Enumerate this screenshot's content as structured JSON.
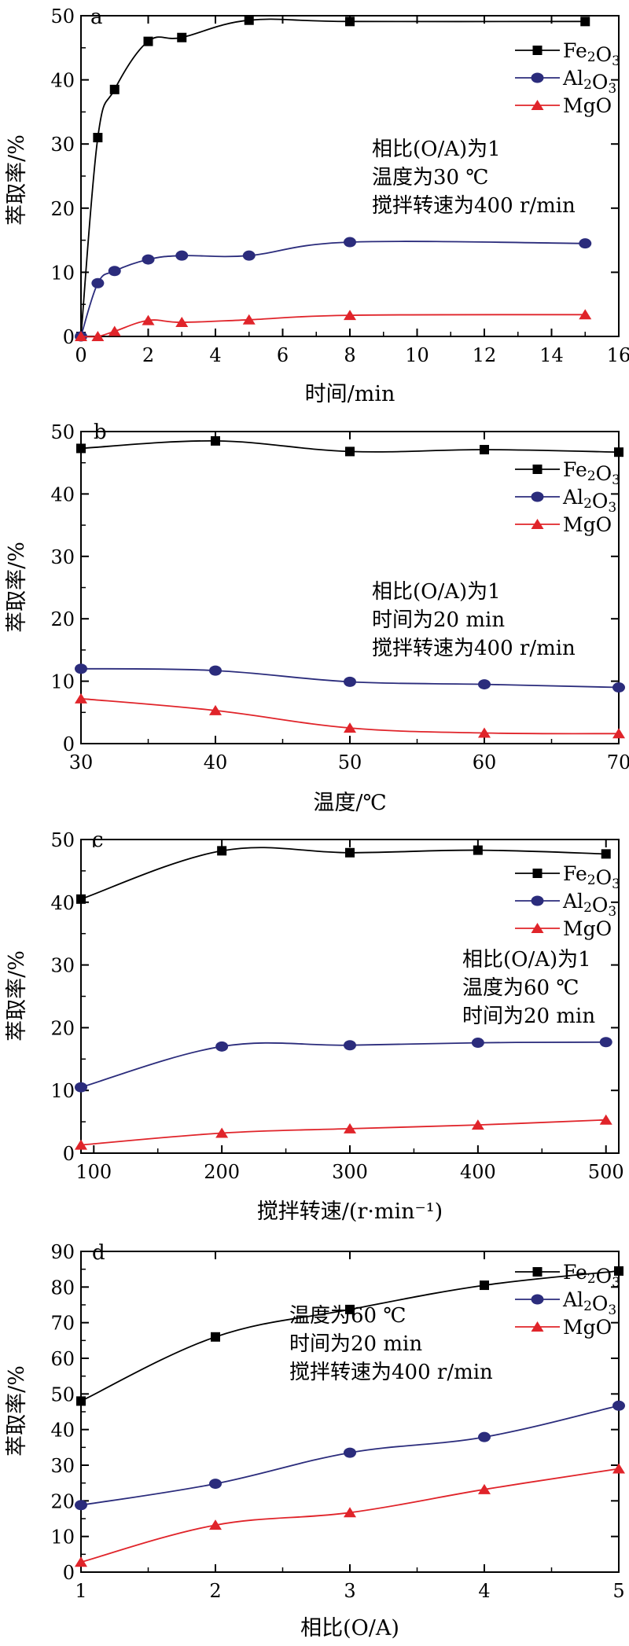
{
  "colors": {
    "Fe2O3": "#000000",
    "Al2O3": "#2b2c7c",
    "MgO": "#e0242a"
  },
  "chart_data": [
    {
      "type": "line",
      "panel_label": "a",
      "xlabel": "时间/min",
      "ylabel": "萃取率/%",
      "xlim": [
        0,
        16
      ],
      "ylim": [
        0,
        50
      ],
      "xticks": [
        0,
        2,
        4,
        6,
        8,
        10,
        12,
        14,
        16
      ],
      "yticks": [
        0,
        10,
        20,
        30,
        40,
        50
      ],
      "legend_position": "top-right",
      "annotations": [
        "相比(O/A)为1",
        "温度为30 ℃",
        "搅拌转速为400 r/min"
      ],
      "series": [
        {
          "name": "Fe2O3",
          "marker": "square",
          "x": [
            0,
            0.5,
            1,
            2,
            3,
            5,
            8,
            15
          ],
          "values": [
            0,
            31,
            38.5,
            46,
            46.6,
            49.3,
            49.1,
            49.1
          ]
        },
        {
          "name": "Al2O3",
          "marker": "circle",
          "x": [
            0,
            0.5,
            1,
            2,
            3,
            5,
            8,
            15
          ],
          "values": [
            0,
            8.3,
            10.2,
            12,
            12.6,
            12.6,
            14.7,
            14.5
          ]
        },
        {
          "name": "MgO",
          "marker": "triangle",
          "x": [
            0,
            0.5,
            1,
            2,
            3,
            5,
            8,
            15
          ],
          "values": [
            0,
            0,
            0.8,
            2.5,
            2.2,
            2.6,
            3.3,
            3.4
          ]
        }
      ]
    },
    {
      "type": "line",
      "panel_label": "b",
      "xlabel": "温度/℃",
      "ylabel": "萃取率/%",
      "xlim": [
        30,
        70
      ],
      "ylim": [
        0,
        50
      ],
      "xticks": [
        30,
        40,
        50,
        60,
        70
      ],
      "yticks": [
        0,
        10,
        20,
        30,
        40,
        50
      ],
      "legend_position": "top-right",
      "annotations": [
        "相比(O/A)为1",
        "时间为20 min",
        "搅拌转速为400 r/min"
      ],
      "series": [
        {
          "name": "Fe2O3",
          "marker": "square",
          "x": [
            30,
            40,
            50,
            60,
            70
          ],
          "values": [
            47.3,
            48.5,
            46.8,
            47.1,
            46.7
          ]
        },
        {
          "name": "Al2O3",
          "marker": "circle",
          "x": [
            30,
            40,
            50,
            60,
            70
          ],
          "values": [
            12,
            11.7,
            9.9,
            9.5,
            9.0
          ]
        },
        {
          "name": "MgO",
          "marker": "triangle",
          "x": [
            30,
            40,
            50,
            60,
            70
          ],
          "values": [
            7.2,
            5.3,
            2.5,
            1.7,
            1.6
          ]
        }
      ]
    },
    {
      "type": "line",
      "panel_label": "c",
      "xlabel": "搅拌转速/(r·min⁻¹)",
      "ylabel": "萃取率/%",
      "xlim": [
        90,
        510
      ],
      "ylim": [
        0,
        50
      ],
      "xticks": [
        100,
        200,
        300,
        400,
        500
      ],
      "yticks": [
        0,
        10,
        20,
        30,
        40,
        50
      ],
      "legend_position": "top-right",
      "annotations": [
        "相比(O/A)为1",
        "温度为60 ℃",
        "时间为20 min"
      ],
      "series": [
        {
          "name": "Fe2O3",
          "marker": "square",
          "x": [
            90,
            200,
            300,
            400,
            500
          ],
          "values": [
            40.5,
            48.2,
            47.9,
            48.3,
            47.7
          ]
        },
        {
          "name": "Al2O3",
          "marker": "circle",
          "x": [
            90,
            200,
            300,
            400,
            500
          ],
          "values": [
            10.5,
            17,
            17.2,
            17.6,
            17.7
          ]
        },
        {
          "name": "MgO",
          "marker": "triangle",
          "x": [
            90,
            200,
            300,
            400,
            500
          ],
          "values": [
            1.3,
            3.2,
            3.9,
            4.5,
            5.3
          ]
        }
      ]
    },
    {
      "type": "line",
      "panel_label": "d",
      "xlabel": "相比(O/A)",
      "ylabel": "萃取率/%",
      "xlim": [
        1,
        5
      ],
      "ylim": [
        0,
        90
      ],
      "xticks": [
        1,
        2,
        3,
        4,
        5
      ],
      "yticks": [
        0,
        10,
        20,
        30,
        40,
        50,
        60,
        70,
        80,
        90
      ],
      "legend_position": "top-right",
      "annotations": [
        "温度为60 ℃",
        "时间为20 min",
        "搅拌转速为400 r/min"
      ],
      "series": [
        {
          "name": "Fe2O3",
          "marker": "square",
          "x": [
            1,
            2,
            3,
            4,
            5
          ],
          "values": [
            48,
            66,
            73.7,
            80.5,
            84.5
          ]
        },
        {
          "name": "Al2O3",
          "marker": "circle",
          "x": [
            1,
            2,
            3,
            4,
            5
          ],
          "values": [
            18.8,
            24.8,
            33.5,
            37.9,
            46.7
          ]
        },
        {
          "name": "MgO",
          "marker": "triangle",
          "x": [
            1,
            2,
            3,
            4,
            5
          ],
          "values": [
            2.8,
            13.2,
            16.7,
            23.2,
            29.0
          ]
        }
      ]
    }
  ]
}
